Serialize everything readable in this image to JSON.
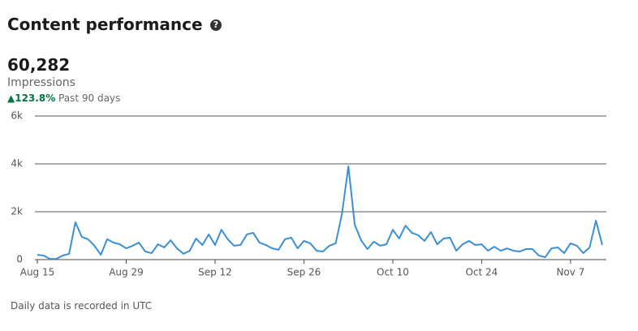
{
  "header": {
    "title": "Content performance"
  },
  "summary": {
    "total": "60,282",
    "metric": "Impressions",
    "change": "123.8%",
    "period": "Past 90 days"
  },
  "chart_data": {
    "type": "line",
    "categories": [
      "Aug 15",
      null,
      null,
      null,
      null,
      null,
      null,
      null,
      null,
      null,
      null,
      null,
      null,
      null,
      "Aug 29",
      null,
      null,
      null,
      null,
      null,
      null,
      null,
      null,
      null,
      null,
      null,
      null,
      null,
      "Sep 12",
      null,
      null,
      null,
      null,
      null,
      null,
      null,
      null,
      null,
      null,
      null,
      null,
      null,
      "Sep 26",
      null,
      null,
      null,
      null,
      null,
      null,
      null,
      null,
      null,
      null,
      null,
      null,
      null,
      "Oct 10",
      null,
      null,
      null,
      null,
      null,
      null,
      null,
      null,
      null,
      null,
      null,
      null,
      null,
      "Oct 24",
      null,
      null,
      null,
      null,
      null,
      null,
      null,
      null,
      null,
      null,
      null,
      null,
      null,
      "Nov 7",
      null,
      null,
      null,
      null,
      null
    ],
    "series": [
      {
        "name": "Impressions",
        "color": "#3b8fd6",
        "values": [
          200,
          170,
          30,
          30,
          170,
          240,
          1560,
          950,
          850,
          580,
          200,
          850,
          710,
          640,
          470,
          580,
          710,
          340,
          270,
          640,
          510,
          810,
          470,
          240,
          370,
          880,
          610,
          1050,
          610,
          1250,
          850,
          580,
          610,
          1050,
          1120,
          710,
          610,
          470,
          410,
          850,
          920,
          470,
          780,
          680,
          370,
          340,
          580,
          680,
          1930,
          3900,
          1460,
          810,
          440,
          750,
          580,
          640,
          1250,
          880,
          1420,
          1120,
          1020,
          780,
          1150,
          640,
          880,
          920,
          370,
          640,
          780,
          610,
          640,
          370,
          540,
          370,
          470,
          370,
          340,
          440,
          440,
          170,
          100,
          470,
          510,
          270,
          680,
          580,
          270,
          510,
          1630,
          610
        ]
      }
    ],
    "ylim": [
      0,
      6000
    ],
    "yticks": [
      0,
      {
        "value": 2000,
        "label": "2k"
      },
      {
        "value": 4000,
        "label": "4k"
      },
      {
        "value": 6000,
        "label": "6k"
      }
    ],
    "grid": true
  },
  "footer": {
    "note": "Daily data is recorded in UTC"
  }
}
